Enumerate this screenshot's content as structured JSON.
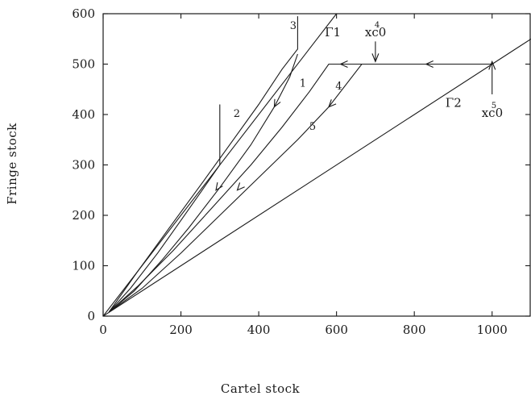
{
  "chart_data": {
    "type": "line",
    "title": "",
    "xlabel": "Cartel stock",
    "ylabel": "Fringe stock",
    "xlim": [
      0,
      1100
    ],
    "ylim": [
      0,
      600
    ],
    "grid": false,
    "x_ticks": [
      {
        "value": 0,
        "label": "0"
      },
      {
        "value": 200,
        "label": "200"
      },
      {
        "value": 400,
        "label": "400"
      },
      {
        "value": 600,
        "label": "600"
      },
      {
        "value": 800,
        "label": "800"
      },
      {
        "value": 1000,
        "label": "1000"
      }
    ],
    "y_ticks": [
      {
        "value": 0,
        "label": "0"
      },
      {
        "value": 100,
        "label": "100"
      },
      {
        "value": 200,
        "label": "200"
      },
      {
        "value": 300,
        "label": "300"
      },
      {
        "value": 400,
        "label": "400"
      },
      {
        "value": 500,
        "label": "500"
      },
      {
        "value": 600,
        "label": "600"
      }
    ],
    "boundaries": [
      {
        "label": "Γ1",
        "points": [
          [
            0,
            0
          ],
          [
            600,
            600
          ]
        ],
        "label_at": [
          570,
          555
        ]
      },
      {
        "label": "Γ2",
        "points": [
          [
            0,
            0
          ],
          [
            1100,
            550
          ]
        ],
        "label_at": [
          880,
          415
        ]
      }
    ],
    "series": [
      {
        "label": "1",
        "label_at": [
          505,
          455
        ],
        "points": [
          [
            15,
            8
          ],
          [
            80,
            50
          ],
          [
            150,
            110
          ],
          [
            220,
            175
          ],
          [
            300,
            255
          ],
          [
            380,
            340
          ],
          [
            440,
            415
          ],
          [
            480,
            475
          ],
          [
            500,
            520
          ]
        ],
        "arrows": [
          [
            440,
            415,
            -1
          ]
        ]
      },
      {
        "label": "2",
        "label_at": [
          335,
          395
        ],
        "points": [
          [
            15,
            8
          ],
          [
            70,
            55
          ],
          [
            140,
            125
          ],
          [
            200,
            190
          ],
          [
            250,
            245
          ],
          [
            300,
            300
          ],
          [
            300,
            330
          ],
          [
            300,
            420
          ]
        ],
        "arrows": [
          [
            290,
            250,
            -1
          ]
        ]
      },
      {
        "label": "3",
        "label_at": [
          480,
          570
        ],
        "points": [
          [
            15,
            8
          ],
          [
            90,
            90
          ],
          [
            170,
            175
          ],
          [
            260,
            270
          ],
          [
            330,
            345
          ],
          [
            400,
            420
          ],
          [
            460,
            490
          ],
          [
            500,
            530
          ],
          [
            500,
            595
          ]
        ],
        "arrows": []
      },
      {
        "label": "4",
        "label_at": [
          597,
          450
        ],
        "points": [
          [
            15,
            8
          ],
          [
            90,
            60
          ],
          [
            180,
            130
          ],
          [
            280,
            215
          ],
          [
            380,
            300
          ],
          [
            460,
            375
          ],
          [
            530,
            445
          ],
          [
            580,
            500
          ],
          [
            700,
            500
          ]
        ],
        "arrows": [
          [
            345,
            250,
            -1
          ],
          [
            610,
            500,
            -1
          ]
        ]
      },
      {
        "label": "5",
        "label_at": [
          530,
          370
        ],
        "points": [
          [
            15,
            8
          ],
          [
            100,
            55
          ],
          [
            200,
            125
          ],
          [
            300,
            200
          ],
          [
            400,
            275
          ],
          [
            500,
            350
          ],
          [
            580,
            415
          ],
          [
            665,
            500
          ],
          [
            1000,
            500
          ]
        ],
        "arrows": [
          [
            580,
            415,
            -1
          ],
          [
            830,
            500,
            -1
          ]
        ]
      }
    ],
    "annotations": [
      {
        "text": "x",
        "sup": "4",
        "sub": "c0",
        "at": [
          700,
          555
        ],
        "arrow_from": [
          700,
          545
        ],
        "arrow_to": [
          700,
          505
        ]
      },
      {
        "text": "x",
        "sup": "5",
        "sub": "c0",
        "at": [
          1000,
          395
        ],
        "arrow_from": [
          1000,
          440
        ],
        "arrow_to": [
          1000,
          505
        ]
      }
    ]
  }
}
